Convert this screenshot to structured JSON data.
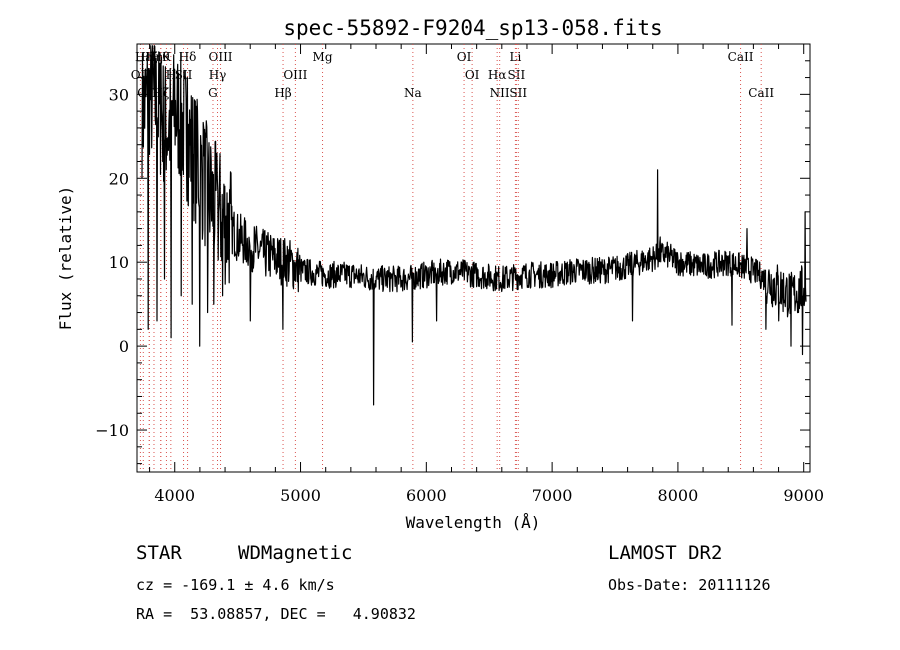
{
  "chart_data": {
    "type": "line",
    "title": "spec-55892-F9204_sp13-058.fits",
    "xlabel": "Wavelength (Å)",
    "ylabel": "Flux (relative)",
    "xlim": [
      3700,
      9050
    ],
    "ylim": [
      -15,
      36
    ],
    "x_ticks": [
      4000,
      5000,
      6000,
      7000,
      8000,
      9000
    ],
    "y_ticks": [
      -10,
      0,
      10,
      20,
      30
    ],
    "grid": false,
    "line_color": "#000000",
    "line_marker_color": "#d9534f",
    "spectrum_anchors": {
      "x": [
        3740,
        3800,
        3850,
        3900,
        3950,
        4000,
        4050,
        4100,
        4150,
        4200,
        4250,
        4300,
        4350,
        4400,
        4500,
        4600,
        4700,
        4800,
        4900,
        5000,
        5200,
        5400,
        5600,
        5800,
        6000,
        6200,
        6400,
        6600,
        6800,
        7000,
        7200,
        7400,
        7600,
        7700,
        7800,
        7900,
        8000,
        8200,
        8400,
        8600,
        8700,
        8800,
        8900,
        9000
      ],
      "y": [
        28,
        30,
        29,
        27,
        26,
        28,
        27,
        25,
        23,
        21,
        19,
        17,
        16,
        15,
        13,
        12,
        11,
        10.5,
        10,
        9,
        8.5,
        8.5,
        8,
        8,
        8.5,
        9,
        8.5,
        8,
        8.5,
        8.5,
        9,
        9,
        9.5,
        10,
        10.5,
        11,
        10,
        9.5,
        10,
        9,
        8,
        7,
        6,
        7
      ]
    },
    "spectrum_features": [
      {
        "x": 3790,
        "y": 2
      },
      {
        "x": 3830,
        "y": 33
      },
      {
        "x": 3860,
        "y": 3
      },
      {
        "x": 3890,
        "y": 34
      },
      {
        "x": 3920,
        "y": 8
      },
      {
        "x": 3970,
        "y": 1
      },
      {
        "x": 4000,
        "y": 33
      },
      {
        "x": 4050,
        "y": 6
      },
      {
        "x": 4100,
        "y": 32
      },
      {
        "x": 4140,
        "y": 5
      },
      {
        "x": 4180,
        "y": 28
      },
      {
        "x": 4200,
        "y": 0
      },
      {
        "x": 4230,
        "y": 26
      },
      {
        "x": 4260,
        "y": 4
      },
      {
        "x": 4290,
        "y": 22
      },
      {
        "x": 4310,
        "y": 5
      },
      {
        "x": 4340,
        "y": 20
      },
      {
        "x": 4380,
        "y": 6
      },
      {
        "x": 4440,
        "y": 17
      },
      {
        "x": 4600,
        "y": 3
      },
      {
        "x": 4860,
        "y": 2
      },
      {
        "x": 5580,
        "y": -7
      },
      {
        "x": 5890,
        "y": 0.5
      },
      {
        "x": 6080,
        "y": 3
      },
      {
        "x": 7640,
        "y": 3
      },
      {
        "x": 7840,
        "y": 21
      },
      {
        "x": 7860,
        "y": 13
      },
      {
        "x": 8430,
        "y": 2.5
      },
      {
        "x": 8550,
        "y": 14
      },
      {
        "x": 8700,
        "y": 2
      },
      {
        "x": 8800,
        "y": 3
      },
      {
        "x": 8900,
        "y": 0
      },
      {
        "x": 8960,
        "y": 4
      },
      {
        "x": 8990,
        "y": -1
      },
      {
        "x": 9010,
        "y": 16
      }
    ],
    "line_markers": [
      {
        "x": 3750,
        "label": "Hε",
        "row": 0
      },
      {
        "x": 3797,
        "label": "Hζ",
        "row": 0
      },
      {
        "x": 3835,
        "label": "Hη",
        "row": 0
      },
      {
        "x": 3889,
        "label": "Hθ",
        "row": 0
      },
      {
        "x": 3934,
        "label": "K",
        "row": 0
      },
      {
        "x": 4102,
        "label": "Hδ",
        "row": 0
      },
      {
        "x": 4364,
        "label": "OIII",
        "row": 0
      },
      {
        "x": 5175,
        "label": "Mg",
        "row": 0
      },
      {
        "x": 6300,
        "label": "OI",
        "row": 0
      },
      {
        "x": 6708,
        "label": "Li",
        "row": 0
      },
      {
        "x": 8498,
        "label": "CaII",
        "row": 0
      },
      {
        "x": 3727,
        "label": "OII",
        "row": 1
      },
      {
        "x": 3969,
        "label": "H",
        "row": 1
      },
      {
        "x": 4070,
        "label": "SII",
        "row": 1
      },
      {
        "x": 4340,
        "label": "Hγ",
        "row": 1
      },
      {
        "x": 4959,
        "label": "OIII",
        "row": 1
      },
      {
        "x": 6364,
        "label": "OI",
        "row": 1
      },
      {
        "x": 6563,
        "label": "Hα",
        "row": 1
      },
      {
        "x": 6716,
        "label": "SII",
        "row": 1
      },
      {
        "x": 3798,
        "label": "OIII",
        "row": 2
      },
      {
        "x": 3889,
        "label": "Hζ",
        "row": 2
      },
      {
        "x": 4304,
        "label": "G",
        "row": 2
      },
      {
        "x": 4861,
        "label": "Hβ",
        "row": 2
      },
      {
        "x": 5893,
        "label": "Na",
        "row": 2
      },
      {
        "x": 6583,
        "label": "NII",
        "row": 2
      },
      {
        "x": 6731,
        "label": "SII",
        "row": 2
      },
      {
        "x": 8662,
        "label": "CaII",
        "row": 2
      }
    ]
  },
  "info": {
    "object_class": "STAR",
    "object_subclass": "WDMagnetic",
    "survey": "LAMOST DR2",
    "redshift_line": "cz = -169.1 ± 4.6 km/s",
    "obs_date_line": "Obs-Date: 20111126",
    "coords_line": "RA =  53.08857, DEC =   4.90832"
  }
}
